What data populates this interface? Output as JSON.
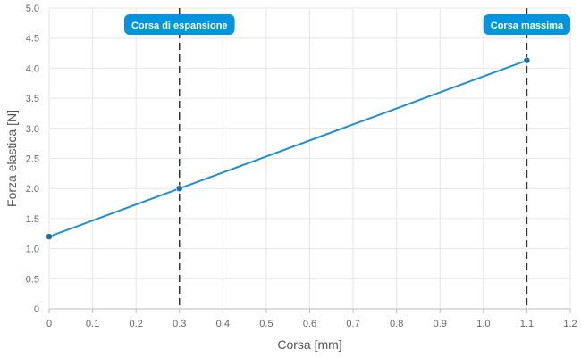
{
  "chart_data": {
    "type": "line",
    "title": "",
    "xlabel": "Corsa [mm]",
    "ylabel": "Forza elastica [N]",
    "xlim": [
      0,
      1.2
    ],
    "ylim": [
      0,
      5
    ],
    "x_ticks": [
      "0",
      "0.1",
      "0.2",
      "0.3",
      "0.4",
      "0.5",
      "0.6",
      "0.7",
      "0.8",
      "0.9",
      "1.0",
      "1.1",
      "1.2"
    ],
    "y_ticks": [
      "0",
      "0.5",
      "1.0",
      "1.5",
      "2.0",
      "2.5",
      "3.0",
      "3.5",
      "4.0",
      "4.5",
      "5.0"
    ],
    "grid": true,
    "series": [
      {
        "x": [
          0,
          0.3,
          1.1
        ],
        "y": [
          1.2,
          2.0,
          4.13
        ]
      }
    ],
    "annotations": [
      {
        "x": 0.3,
        "label": "Corsa di espansione"
      },
      {
        "x": 1.1,
        "label": "Corsa massima"
      }
    ],
    "colors": {
      "line": "#1e90d0",
      "point": "#1f6f9f",
      "annotation_bg": "#0095dc",
      "annotation_line": "#333333",
      "grid": "#e6e6e6"
    }
  }
}
